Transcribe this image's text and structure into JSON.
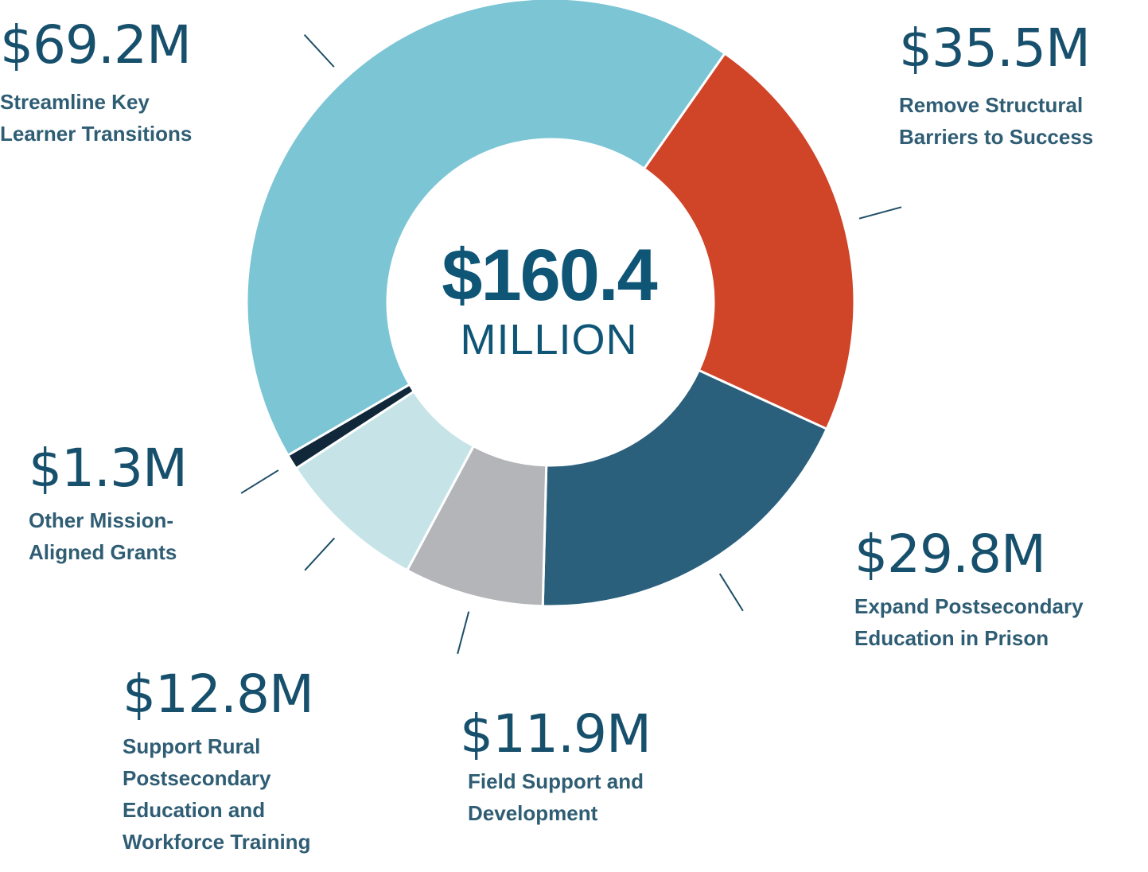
{
  "chart_data": {
    "type": "pie",
    "variant": "donut",
    "center_total": "$160.4",
    "center_unit": "MILLION",
    "categories": [
      "Streamline Key Learner Transitions",
      "Remove Structural Barriers to Success",
      "Expand Postsecondary Education in Prison",
      "Field Support and Development",
      "Support Rural Postsecondary Education and Workforce Training",
      "Other Mission-Aligned Grants"
    ],
    "values": [
      69.2,
      35.5,
      29.8,
      11.9,
      12.8,
      1.3
    ],
    "value_labels": [
      "$69.2M",
      "$35.5M",
      "$29.8M",
      "$11.9M",
      "$12.8M",
      "$1.3M"
    ],
    "label_lines": [
      [
        "Streamline Key",
        "Learner Transitions"
      ],
      [
        "Remove Structural",
        "Barriers to Success"
      ],
      [
        "Expand Postsecondary",
        "Education in Prison"
      ],
      [
        "Field Support and",
        "Development"
      ],
      [
        "Support Rural",
        "Postsecondary",
        "Education and",
        "Workforce Training"
      ],
      [
        "Other Mission-",
        "Aligned Grants"
      ]
    ],
    "colors": [
      "#7cc5d5",
      "#d04428",
      "#2b607c",
      "#b3b5b8",
      "#c6e4e8",
      "#10283a"
    ],
    "start_segment": "Remove Structural Barriers to Success",
    "direction": "clockwise"
  }
}
